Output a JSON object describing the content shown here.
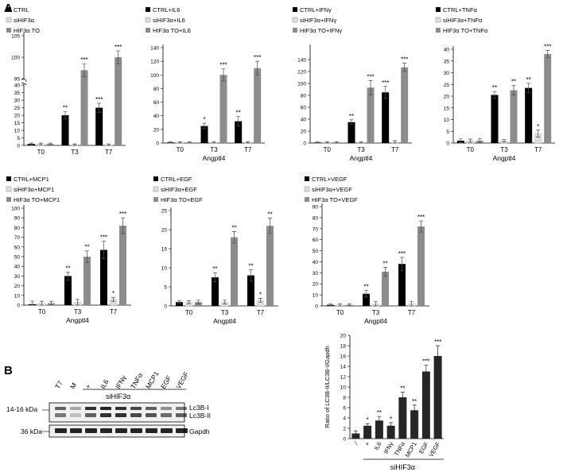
{
  "panel_labels": {
    "a": "A",
    "b": "B"
  },
  "colors": {
    "ctrl": "#000000",
    "si": "#dedede",
    "to": "#8c8c8c",
    "bar": "#262626"
  },
  "chart_data": [
    {
      "type": "bar",
      "xlabel": "",
      "ylabel": "",
      "categories": [
        "T0",
        "T3",
        "T7"
      ],
      "ylim": [
        0,
        100
      ],
      "yticks": [
        0,
        5,
        10,
        15,
        20,
        25,
        30,
        35,
        40,
        95,
        100,
        105
      ],
      "axis_break": [
        40,
        95
      ],
      "series": [
        {
          "name": "CTRL",
          "values": [
            1,
            20,
            25
          ],
          "errors": [
            0.6,
            2.5,
            3
          ],
          "stars": [
            "",
            "**",
            "***"
          ]
        },
        {
          "name": "siHIF3α",
          "values": [
            1,
            0.5,
            0.5
          ],
          "errors": [
            0.5,
            0.5,
            0.5
          ],
          "stars": [
            "",
            "",
            ""
          ]
        },
        {
          "name": "HIF3α TO",
          "values": [
            1,
            97,
            100
          ],
          "errors": [
            0.5,
            1.5,
            1.5
          ],
          "stars": [
            "",
            "***",
            "***"
          ]
        }
      ]
    },
    {
      "type": "bar",
      "xlabel": "Angptl4",
      "categories": [
        "T0",
        "T3",
        "T7"
      ],
      "ylim": [
        0,
        140
      ],
      "yticks": [
        0,
        20,
        40,
        60,
        80,
        100,
        120,
        140
      ],
      "series": [
        {
          "name": "CTRL+IL6",
          "values": [
            1,
            25,
            32
          ],
          "errors": [
            1,
            4,
            7
          ],
          "stars": [
            "",
            "*",
            "**"
          ]
        },
        {
          "name": "siHIF3α+IL6",
          "values": [
            1,
            1,
            1
          ],
          "errors": [
            1,
            1,
            1
          ],
          "stars": [
            "",
            "",
            ""
          ]
        },
        {
          "name": "HIF3α TO+IL6",
          "values": [
            1,
            100,
            110
          ],
          "errors": [
            1,
            9,
            10
          ],
          "stars": [
            "",
            "***",
            "***"
          ]
        }
      ]
    },
    {
      "type": "bar",
      "xlabel": "Angptl4",
      "categories": [
        "T0",
        "T3",
        "T7"
      ],
      "ylim": [
        0,
        160
      ],
      "yticks": [
        0,
        20,
        40,
        60,
        80,
        100,
        120,
        140
      ],
      "series": [
        {
          "name": "CTRL+IFNγ",
          "values": [
            1,
            35,
            85
          ],
          "errors": [
            1,
            4,
            10
          ],
          "stars": [
            "",
            "**",
            "***"
          ]
        },
        {
          "name": "siHIF3α+IFNγ",
          "values": [
            1,
            1,
            2
          ],
          "errors": [
            1,
            1,
            2
          ],
          "stars": [
            "",
            "",
            ""
          ]
        },
        {
          "name": "HIF3α TO+IFNγ",
          "values": [
            1,
            93,
            127
          ],
          "errors": [
            1,
            12,
            7
          ],
          "stars": [
            "",
            "***",
            "***"
          ]
        }
      ]
    },
    {
      "type": "bar",
      "xlabel": "Angptl4",
      "categories": [
        "T0",
        "T3",
        "T7"
      ],
      "ylim": [
        0,
        40
      ],
      "yticks": [
        0,
        5,
        10,
        15,
        20,
        25,
        30,
        35,
        40
      ],
      "series": [
        {
          "name": "CTRL+TNFα",
          "values": [
            1,
            20.5,
            23.5
          ],
          "errors": [
            0.8,
            1.5,
            2
          ],
          "stars": [
            "",
            "**",
            "**"
          ]
        },
        {
          "name": "siHIF3α+TNFα",
          "values": [
            1,
            1,
            4
          ],
          "errors": [
            0.7,
            0.5,
            1.5
          ],
          "stars": [
            "",
            "",
            "*"
          ]
        },
        {
          "name": "HIF3α TO+TNFα",
          "values": [
            1,
            22.5,
            38
          ],
          "errors": [
            0.8,
            2,
            1.5
          ],
          "stars": [
            "",
            "**",
            "***"
          ]
        }
      ]
    },
    {
      "type": "bar",
      "xlabel": "Angptl4",
      "categories": [
        "T0",
        "T3",
        "T7"
      ],
      "ylim": [
        0,
        100
      ],
      "yticks": [
        0,
        10,
        20,
        30,
        40,
        50,
        60,
        70,
        80,
        90,
        100
      ],
      "series": [
        {
          "name": "CTRL+MCP1",
          "values": [
            1,
            30,
            57
          ],
          "errors": [
            3,
            4,
            9
          ],
          "stars": [
            "",
            "**",
            "***"
          ]
        },
        {
          "name": "siHIF3α+MCP1",
          "values": [
            2,
            3,
            6
          ],
          "errors": [
            2,
            3,
            2
          ],
          "stars": [
            "",
            "",
            "*"
          ]
        },
        {
          "name": "HIF3α TO+MCP1",
          "values": [
            2,
            50,
            82
          ],
          "errors": [
            2,
            6,
            8
          ],
          "stars": [
            "",
            "**",
            "***"
          ]
        }
      ]
    },
    {
      "type": "bar",
      "xlabel": "Angptl4",
      "categories": [
        "T0",
        "T3",
        "T7"
      ],
      "ylim": [
        0,
        25
      ],
      "yticks": [
        0,
        5,
        10,
        15,
        20,
        25
      ],
      "series": [
        {
          "name": "CTRL+EGF",
          "values": [
            1,
            7.5,
            8
          ],
          "errors": [
            0.4,
            1.2,
            1.5
          ],
          "stars": [
            "",
            "**",
            "**"
          ]
        },
        {
          "name": "siHIF3α+EGF",
          "values": [
            1,
            1,
            1.5
          ],
          "errors": [
            0.4,
            0.5,
            0.5
          ],
          "stars": [
            "",
            "",
            "*"
          ]
        },
        {
          "name": "HIF3α TO+EGF",
          "values": [
            1,
            18,
            21
          ],
          "errors": [
            0.5,
            1.5,
            2
          ],
          "stars": [
            "",
            "**",
            "**"
          ]
        }
      ]
    },
    {
      "type": "bar",
      "xlabel": "Angptl4",
      "categories": [
        "T0",
        "T3",
        "T7"
      ],
      "ylim": [
        0,
        90
      ],
      "yticks": [
        0,
        10,
        20,
        30,
        40,
        50,
        60,
        70,
        80,
        90
      ],
      "series": [
        {
          "name": "CTRL+VEGF",
          "values": [
            1,
            11,
            38
          ],
          "errors": [
            1,
            3,
            6
          ],
          "stars": [
            "",
            "**",
            "***"
          ]
        },
        {
          "name": "siHIF3α+VEGF",
          "values": [
            1,
            2,
            2
          ],
          "errors": [
            1,
            2,
            2
          ],
          "stars": [
            "",
            "",
            ""
          ]
        },
        {
          "name": "HIF3α TO+VEGF",
          "values": [
            1,
            31,
            72
          ],
          "errors": [
            1,
            4,
            5
          ],
          "stars": [
            "",
            "**",
            "***"
          ]
        }
      ]
    },
    {
      "type": "bar",
      "ylabel": "Ratio of LC3B-II/LC3B-I/Gapdh",
      "group_label": "siHIF3α",
      "categories": [
        "⁄",
        "+",
        "IL6",
        "IFNγ",
        "TNFα",
        "MCP1",
        "EGF",
        "VEGF"
      ],
      "ylim": [
        0,
        20
      ],
      "yticks": [
        0,
        2,
        4,
        6,
        8,
        10,
        12,
        14,
        16,
        18,
        20
      ],
      "values": [
        1,
        2.5,
        3.5,
        2.5,
        8,
        5.5,
        13,
        16
      ],
      "errors": [
        0.5,
        0.4,
        0.8,
        0.6,
        1,
        1,
        1.2,
        2
      ],
      "stars": [
        "",
        "*",
        "**",
        "*",
        "**",
        "**",
        "***",
        "***"
      ]
    }
  ],
  "blot": {
    "lanes": [
      "T7",
      "M",
      "+",
      "IL6",
      "IFNγ",
      "TNFα",
      "MCP1",
      "EGF",
      "VEGF"
    ],
    "group_label": "siHIF3α",
    "rows": [
      {
        "label": "14-16 kDa",
        "bands": [
          "Lc3B-I",
          "Lc3B-II"
        ]
      },
      {
        "label": "36 kDa",
        "bands": [
          "Gapdh"
        ]
      }
    ]
  }
}
